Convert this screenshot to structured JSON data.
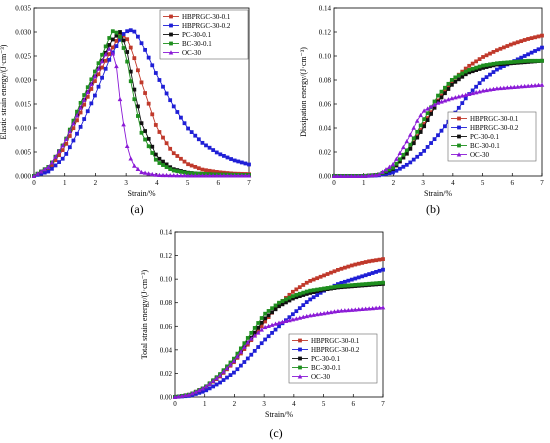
{
  "figure": {
    "panel_labels": [
      "(a)",
      "(b)",
      "(c)"
    ]
  },
  "style": {
    "series_colors": {
      "HBPRGC-30-0.1": "#c0392b",
      "HBPRGC-30-0.2": "#1f1fd6",
      "PC-30-0.1": "#111111",
      "BC-30-0.1": "#1f8f1f",
      "OC-30": "#8a19d6"
    },
    "axis_color": "#000000"
  },
  "chart_data": [
    {
      "type": "line",
      "panel": "(a)",
      "title": "",
      "xlabel": "Strain/%",
      "ylabel": "Elastic strain energy/(J·cm⁻³)",
      "xlim": [
        0,
        7
      ],
      "ylim": [
        0,
        0.035
      ],
      "xticks": [
        "0",
        "1",
        "2",
        "3",
        "4",
        "5",
        "6",
        "7"
      ],
      "yticks": [
        "0.000",
        "0.005",
        "0.010",
        "0.015",
        "0.020",
        "0.025",
        "0.030",
        "0.035"
      ],
      "grid": false,
      "legend_position": "top-right",
      "series": [
        {
          "name": "HBPRGC-30-0.1",
          "marker": "square",
          "points": [
            [
              0,
              0
            ],
            [
              0.5,
              0.0015
            ],
            [
              1,
              0.006
            ],
            [
              1.5,
              0.013
            ],
            [
              2,
              0.02
            ],
            [
              2.5,
              0.026
            ],
            [
              2.8,
              0.0295
            ],
            [
              3,
              0.029
            ],
            [
              3.2,
              0.026
            ],
            [
              3.5,
              0.0195
            ],
            [
              4,
              0.01
            ],
            [
              4.5,
              0.005
            ],
            [
              5,
              0.0025
            ],
            [
              5.5,
              0.0013
            ],
            [
              6,
              0.0008
            ],
            [
              6.5,
              0.0005
            ],
            [
              7,
              0.0004
            ]
          ]
        },
        {
          "name": "HBPRGC-30-0.2",
          "marker": "square",
          "points": [
            [
              0,
              0
            ],
            [
              0.5,
              0.001
            ],
            [
              1,
              0.004
            ],
            [
              1.5,
              0.01
            ],
            [
              2,
              0.017
            ],
            [
              2.5,
              0.025
            ],
            [
              2.9,
              0.0295
            ],
            [
              3.1,
              0.0305
            ],
            [
              3.3,
              0.03
            ],
            [
              3.6,
              0.0265
            ],
            [
              4,
              0.021
            ],
            [
              4.5,
              0.015
            ],
            [
              5,
              0.01
            ],
            [
              5.5,
              0.0068
            ],
            [
              6,
              0.0047
            ],
            [
              6.5,
              0.0033
            ],
            [
              7,
              0.0024
            ]
          ]
        },
        {
          "name": "PC-30-0.1",
          "marker": "square",
          "points": [
            [
              0,
              0
            ],
            [
              0.5,
              0.002
            ],
            [
              1,
              0.007
            ],
            [
              1.5,
              0.014
            ],
            [
              2,
              0.021
            ],
            [
              2.5,
              0.028
            ],
            [
              2.8,
              0.03
            ],
            [
              3,
              0.027
            ],
            [
              3.2,
              0.02
            ],
            [
              3.5,
              0.011
            ],
            [
              4,
              0.004
            ],
            [
              4.5,
              0.0015
            ],
            [
              5,
              0.0007
            ],
            [
              5.5,
              0.0004
            ],
            [
              6,
              0.0003
            ],
            [
              7,
              0.0002
            ]
          ]
        },
        {
          "name": "BC-30-0.1",
          "marker": "square",
          "points": [
            [
              0,
              0
            ],
            [
              0.5,
              0.002
            ],
            [
              1,
              0.007
            ],
            [
              1.5,
              0.015
            ],
            [
              2,
              0.022
            ],
            [
              2.5,
              0.0295
            ],
            [
              2.6,
              0.0305
            ],
            [
              2.8,
              0.029
            ],
            [
              3,
              0.025
            ],
            [
              3.2,
              0.018
            ],
            [
              3.5,
              0.009
            ],
            [
              4,
              0.003
            ],
            [
              4.5,
              0.0012
            ],
            [
              5,
              0.0006
            ],
            [
              6,
              0.0003
            ],
            [
              7,
              0.0002
            ]
          ]
        },
        {
          "name": "OC-30",
          "marker": "triangle",
          "points": [
            [
              0,
              0
            ],
            [
              0.5,
              0.002
            ],
            [
              1,
              0.007
            ],
            [
              1.5,
              0.014
            ],
            [
              2,
              0.021
            ],
            [
              2.3,
              0.025
            ],
            [
              2.5,
              0.027
            ],
            [
              2.7,
              0.0225
            ],
            [
              2.8,
              0.016
            ],
            [
              3,
              0.007
            ],
            [
              3.2,
              0.0025
            ],
            [
              3.5,
              0.0008
            ],
            [
              4,
              0.0002
            ],
            [
              5,
              0.0001
            ],
            [
              7,
              0.0001
            ]
          ]
        }
      ]
    },
    {
      "type": "line",
      "panel": "(b)",
      "title": "",
      "xlabel": "Strain/%",
      "ylabel": "Dissipation energy/(J·cm⁻³)",
      "xlim": [
        0,
        7
      ],
      "ylim": [
        0,
        0.14
      ],
      "xticks": [
        "0",
        "1",
        "2",
        "3",
        "4",
        "5",
        "6",
        "7"
      ],
      "yticks": [
        "0.00",
        "0.02",
        "0.04",
        "0.06",
        "0.08",
        "0.10",
        "0.12",
        "0.14"
      ],
      "grid": false,
      "legend_position": "bottom-right",
      "series": [
        {
          "name": "HBPRGC-30-0.1",
          "marker": "square",
          "points": [
            [
              0,
              0
            ],
            [
              1,
              0
            ],
            [
              1.5,
              0.001
            ],
            [
              2,
              0.006
            ],
            [
              2.5,
              0.02
            ],
            [
              3,
              0.042
            ],
            [
              3.5,
              0.063
            ],
            [
              4,
              0.08
            ],
            [
              4.5,
              0.091
            ],
            [
              5,
              0.099
            ],
            [
              5.5,
              0.105
            ],
            [
              6,
              0.11
            ],
            [
              6.5,
              0.114
            ],
            [
              7,
              0.117
            ]
          ]
        },
        {
          "name": "HBPRGC-30-0.2",
          "marker": "square",
          "points": [
            [
              0,
              0
            ],
            [
              1,
              0
            ],
            [
              1.5,
              0.0005
            ],
            [
              2,
              0.003
            ],
            [
              2.5,
              0.01
            ],
            [
              3,
              0.02
            ],
            [
              3.5,
              0.034
            ],
            [
              4,
              0.05
            ],
            [
              4.5,
              0.067
            ],
            [
              5,
              0.08
            ],
            [
              5.5,
              0.089
            ],
            [
              6,
              0.095
            ],
            [
              6.5,
              0.101
            ],
            [
              7,
              0.107
            ]
          ]
        },
        {
          "name": "PC-30-0.1",
          "marker": "square",
          "points": [
            [
              0,
              0
            ],
            [
              1,
              0
            ],
            [
              1.5,
              0.001
            ],
            [
              2,
              0.006
            ],
            [
              2.5,
              0.02
            ],
            [
              3,
              0.04
            ],
            [
              3.5,
              0.062
            ],
            [
              4,
              0.077
            ],
            [
              4.5,
              0.086
            ],
            [
              5,
              0.09
            ],
            [
              5.5,
              0.093
            ],
            [
              6,
              0.094
            ],
            [
              6.5,
              0.095
            ],
            [
              7,
              0.096
            ]
          ]
        },
        {
          "name": "BC-30-0.1",
          "marker": "square",
          "points": [
            [
              0,
              0
            ],
            [
              1,
              0
            ],
            [
              1.5,
              0.001
            ],
            [
              2,
              0.007
            ],
            [
              2.5,
              0.023
            ],
            [
              3,
              0.046
            ],
            [
              3.5,
              0.067
            ],
            [
              4,
              0.081
            ],
            [
              4.5,
              0.088
            ],
            [
              5,
              0.092
            ],
            [
              5.5,
              0.094
            ],
            [
              6,
              0.095
            ],
            [
              6.5,
              0.096
            ],
            [
              7,
              0.096
            ]
          ]
        },
        {
          "name": "OC-30",
          "marker": "triangle",
          "points": [
            [
              0,
              0
            ],
            [
              1,
              0
            ],
            [
              1.5,
              0.001
            ],
            [
              2,
              0.01
            ],
            [
              2.5,
              0.031
            ],
            [
              2.8,
              0.046
            ],
            [
              3,
              0.054
            ],
            [
              3.5,
              0.061
            ],
            [
              4,
              0.065
            ],
            [
              4.5,
              0.068
            ],
            [
              5,
              0.071
            ],
            [
              5.5,
              0.073
            ],
            [
              6,
              0.074
            ],
            [
              6.5,
              0.075
            ],
            [
              7,
              0.076
            ]
          ]
        }
      ]
    },
    {
      "type": "line",
      "panel": "(c)",
      "title": "",
      "xlabel": "Strain/%",
      "ylabel": "Total strain energy/(J·cm⁻³)",
      "xlim": [
        0,
        7
      ],
      "ylim": [
        0,
        0.14
      ],
      "xticks": [
        "0",
        "1",
        "2",
        "3",
        "4",
        "5",
        "6",
        "7"
      ],
      "yticks": [
        "0.00",
        "0.02",
        "0.04",
        "0.06",
        "0.08",
        "0.10",
        "0.12",
        "0.14"
      ],
      "grid": false,
      "legend_position": "bottom-right",
      "series": [
        {
          "name": "HBPRGC-30-0.1",
          "marker": "square",
          "points": [
            [
              0,
              0
            ],
            [
              0.5,
              0.002
            ],
            [
              1,
              0.008
            ],
            [
              1.5,
              0.017
            ],
            [
              2,
              0.03
            ],
            [
              2.5,
              0.046
            ],
            [
              3,
              0.063
            ],
            [
              3.5,
              0.079
            ],
            [
              4,
              0.09
            ],
            [
              4.5,
              0.098
            ],
            [
              5,
              0.103
            ],
            [
              5.5,
              0.108
            ],
            [
              6,
              0.112
            ],
            [
              6.5,
              0.115
            ],
            [
              7,
              0.117
            ]
          ]
        },
        {
          "name": "HBPRGC-30-0.2",
          "marker": "square",
          "points": [
            [
              0,
              0
            ],
            [
              0.5,
              0.001
            ],
            [
              1,
              0.005
            ],
            [
              1.5,
              0.012
            ],
            [
              2,
              0.021
            ],
            [
              2.5,
              0.034
            ],
            [
              3,
              0.048
            ],
            [
              3.5,
              0.06
            ],
            [
              4,
              0.071
            ],
            [
              4.5,
              0.082
            ],
            [
              5,
              0.09
            ],
            [
              5.5,
              0.096
            ],
            [
              6,
              0.1
            ],
            [
              6.5,
              0.104
            ],
            [
              7,
              0.108
            ]
          ]
        },
        {
          "name": "PC-30-0.1",
          "marker": "square",
          "points": [
            [
              0,
              0
            ],
            [
              0.5,
              0.002
            ],
            [
              1,
              0.008
            ],
            [
              1.5,
              0.018
            ],
            [
              2,
              0.031
            ],
            [
              2.5,
              0.048
            ],
            [
              3,
              0.066
            ],
            [
              3.5,
              0.077
            ],
            [
              4,
              0.084
            ],
            [
              4.5,
              0.088
            ],
            [
              5,
              0.091
            ],
            [
              5.5,
              0.093
            ],
            [
              6,
              0.094
            ],
            [
              6.5,
              0.095
            ],
            [
              7,
              0.096
            ]
          ]
        },
        {
          "name": "BC-30-0.1",
          "marker": "square",
          "points": [
            [
              0,
              0
            ],
            [
              0.5,
              0.002
            ],
            [
              1,
              0.008
            ],
            [
              1.5,
              0.019
            ],
            [
              2,
              0.033
            ],
            [
              2.5,
              0.052
            ],
            [
              3,
              0.07
            ],
            [
              3.5,
              0.08
            ],
            [
              4,
              0.086
            ],
            [
              4.5,
              0.09
            ],
            [
              5,
              0.092
            ],
            [
              5.5,
              0.094
            ],
            [
              6,
              0.095
            ],
            [
              6.5,
              0.096
            ],
            [
              7,
              0.097
            ]
          ]
        },
        {
          "name": "OC-30",
          "marker": "triangle",
          "points": [
            [
              0,
              0
            ],
            [
              0.5,
              0.002
            ],
            [
              1,
              0.008
            ],
            [
              1.5,
              0.018
            ],
            [
              2,
              0.031
            ],
            [
              2.5,
              0.048
            ],
            [
              3,
              0.059
            ],
            [
              3.5,
              0.063
            ],
            [
              4,
              0.066
            ],
            [
              4.5,
              0.069
            ],
            [
              5,
              0.071
            ],
            [
              5.5,
              0.073
            ],
            [
              6,
              0.074
            ],
            [
              6.5,
              0.075
            ],
            [
              7,
              0.076
            ]
          ]
        }
      ]
    }
  ]
}
